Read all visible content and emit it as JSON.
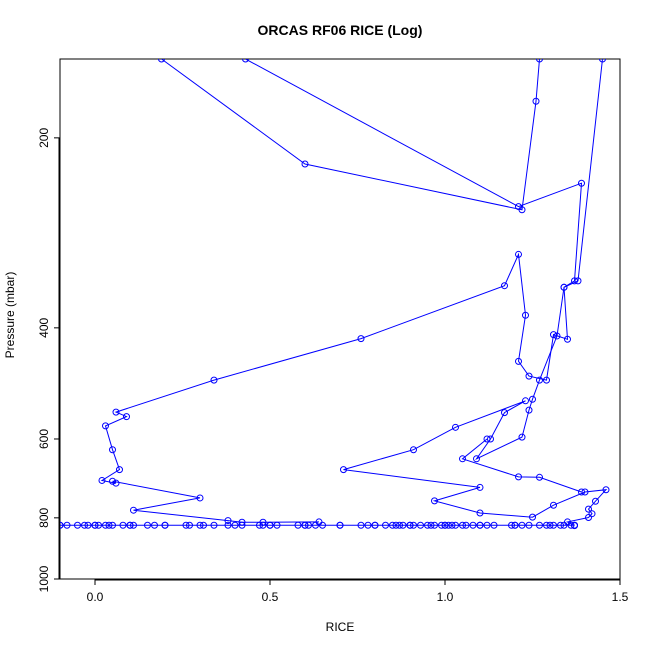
{
  "chart_data": {
    "type": "scatter",
    "title": "ORCAS RF06 RICE (Log)",
    "xlabel": "RICE",
    "ylabel": "Pressure (mbar)",
    "xlim": [
      -0.1,
      1.5
    ],
    "ylim": [
      1000,
      150
    ],
    "y_scale": "log",
    "x_ticks": [
      0.0,
      0.5,
      1.0,
      1.5
    ],
    "x_tick_labels": [
      "0.0",
      "0.5",
      "1.0",
      "1.5"
    ],
    "y_ticks": [
      200,
      400,
      600,
      800,
      1000
    ],
    "y_tick_labels": [
      "200",
      "400",
      "600",
      "800",
      "1000"
    ],
    "grid": false,
    "color": "#0000ff",
    "marker": "open-circle",
    "series": [
      {
        "points": [
          [
            0.19,
            150
          ],
          [
            0.6,
            220
          ],
          [
            1.22,
            260
          ],
          [
            1.26,
            175
          ],
          [
            1.27,
            150
          ]
        ]
      },
      {
        "points": [
          [
            0.43,
            150
          ],
          [
            1.21,
            257
          ],
          [
            1.39,
            236
          ],
          [
            1.37,
            337
          ],
          [
            1.34,
            345
          ],
          [
            1.35,
            417
          ],
          [
            1.31,
            410
          ],
          [
            1.29,
            484
          ],
          [
            1.24,
            477
          ],
          [
            1.21,
            452
          ],
          [
            1.23,
            382
          ],
          [
            1.21,
            306
          ],
          [
            1.17,
            343
          ],
          [
            0.76,
            416
          ],
          [
            0.34,
            484
          ],
          [
            0.06,
            544
          ],
          [
            0.09,
            553
          ],
          [
            0.03,
            572
          ],
          [
            0.05,
            624
          ],
          [
            0.07,
            671
          ],
          [
            0.02,
            698
          ],
          [
            0.06,
            705
          ],
          [
            0.05,
            700
          ],
          [
            0.3,
            744
          ],
          [
            0.11,
            778
          ],
          [
            0.38,
            808
          ],
          [
            0.42,
            813
          ],
          [
            0.48,
            813
          ],
          [
            0.64,
            812
          ]
        ]
      },
      {
        "points": [
          [
            1.45,
            150
          ],
          [
            1.38,
            337
          ],
          [
            1.34,
            345
          ],
          [
            1.32,
            412
          ],
          [
            1.27,
            484
          ],
          [
            1.25,
            519
          ],
          [
            1.24,
            540
          ],
          [
            1.22,
            596
          ],
          [
            1.09,
            645
          ],
          [
            1.13,
            600
          ],
          [
            1.17,
            545
          ],
          [
            1.23,
            522
          ],
          [
            1.03,
            575
          ],
          [
            0.91,
            624
          ],
          [
            0.71,
            671
          ],
          [
            1.1,
            716
          ],
          [
            0.97,
            752
          ],
          [
            1.1,
            786
          ],
          [
            1.25,
            798
          ],
          [
            1.31,
            764
          ],
          [
            1.4,
            728
          ],
          [
            1.46,
            722
          ],
          [
            1.43,
            753
          ],
          [
            1.41,
            775
          ],
          [
            1.42,
            788
          ],
          [
            1.41,
            799
          ],
          [
            1.35,
            812
          ],
          [
            1.37,
            823
          ]
        ]
      },
      {
        "points": [
          [
            1.12,
            600
          ],
          [
            1.05,
            645
          ],
          [
            1.21,
            689
          ],
          [
            1.27,
            690
          ],
          [
            1.39,
            728
          ]
        ]
      },
      {
        "points": [
          [
            -0.1,
            822
          ],
          [
            0.0,
            822
          ],
          [
            0.1,
            822
          ],
          [
            0.2,
            822
          ],
          [
            0.3,
            822
          ],
          [
            0.4,
            822
          ],
          [
            0.5,
            822
          ],
          [
            0.6,
            822
          ],
          [
            0.7,
            822
          ],
          [
            0.8,
            822
          ],
          [
            0.9,
            822
          ],
          [
            1.0,
            822
          ],
          [
            1.1,
            822
          ],
          [
            1.2,
            822
          ],
          [
            1.3,
            822
          ],
          [
            1.37,
            822
          ]
        ]
      }
    ],
    "scatter_points": [
      [
        -0.1,
        822
      ],
      [
        -0.08,
        822
      ],
      [
        -0.05,
        822
      ],
      [
        -0.03,
        822
      ],
      [
        -0.02,
        822
      ],
      [
        0.0,
        822
      ],
      [
        0.01,
        822
      ],
      [
        0.03,
        822
      ],
      [
        0.04,
        822
      ],
      [
        0.05,
        822
      ],
      [
        0.08,
        822
      ],
      [
        0.1,
        822
      ],
      [
        0.11,
        822
      ],
      [
        0.15,
        822
      ],
      [
        0.17,
        822
      ],
      [
        0.2,
        822
      ],
      [
        0.26,
        822
      ],
      [
        0.27,
        822
      ],
      [
        0.31,
        822
      ],
      [
        0.34,
        822
      ],
      [
        0.38,
        822
      ],
      [
        0.42,
        822
      ],
      [
        0.47,
        822
      ],
      [
        0.48,
        822
      ],
      [
        0.5,
        822
      ],
      [
        0.52,
        822
      ],
      [
        0.58,
        822
      ],
      [
        0.6,
        822
      ],
      [
        0.61,
        822
      ],
      [
        0.63,
        822
      ],
      [
        0.65,
        822
      ],
      [
        0.7,
        822
      ],
      [
        0.76,
        822
      ],
      [
        0.78,
        822
      ],
      [
        0.8,
        822
      ],
      [
        0.83,
        822
      ],
      [
        0.85,
        822
      ],
      [
        0.86,
        822
      ],
      [
        0.87,
        822
      ],
      [
        0.88,
        822
      ],
      [
        0.9,
        822
      ],
      [
        0.91,
        822
      ],
      [
        0.93,
        822
      ],
      [
        0.95,
        822
      ],
      [
        0.96,
        822
      ],
      [
        0.97,
        822
      ],
      [
        0.99,
        822
      ],
      [
        1.0,
        822
      ],
      [
        1.01,
        822
      ],
      [
        1.02,
        822
      ],
      [
        1.03,
        822
      ],
      [
        1.05,
        822
      ],
      [
        1.06,
        822
      ],
      [
        1.08,
        822
      ],
      [
        1.1,
        822
      ],
      [
        1.12,
        822
      ],
      [
        1.14,
        822
      ],
      [
        1.19,
        822
      ],
      [
        1.2,
        822
      ],
      [
        1.22,
        822
      ],
      [
        1.24,
        822
      ],
      [
        1.27,
        822
      ],
      [
        1.29,
        822
      ],
      [
        1.31,
        822
      ],
      [
        1.33,
        822
      ],
      [
        1.34,
        822
      ],
      [
        1.36,
        822
      ],
      [
        1.37,
        822
      ]
    ]
  }
}
